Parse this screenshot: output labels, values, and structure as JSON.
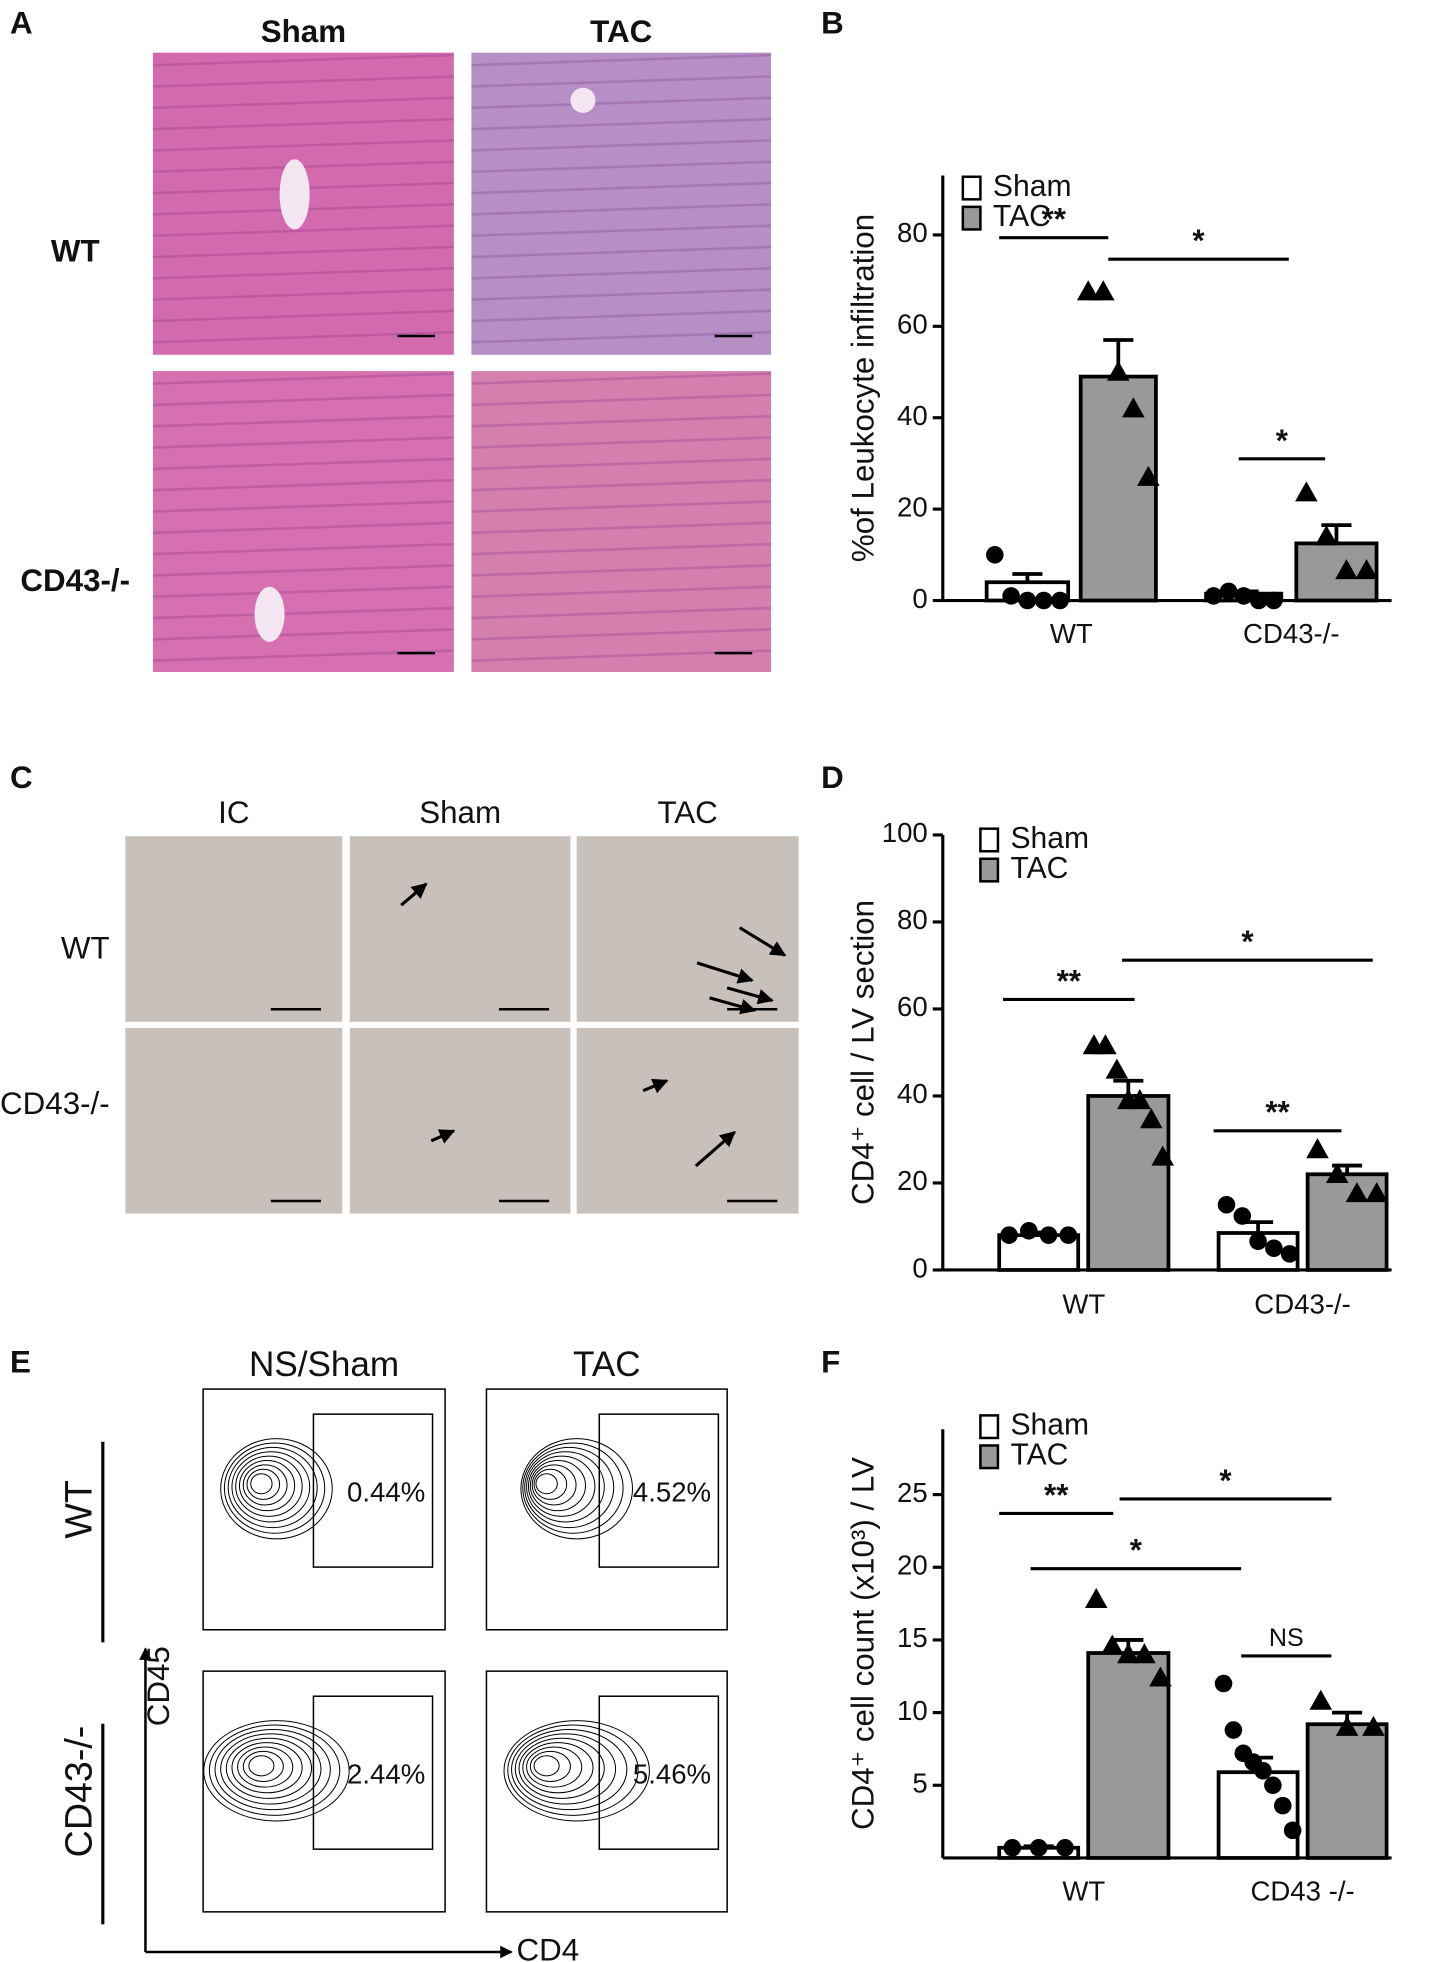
{
  "panels": {
    "A": {
      "letter": "A",
      "columns": [
        "Sham",
        "TAC"
      ],
      "rows": [
        "WT",
        "CD43-/-"
      ]
    },
    "C": {
      "letter": "C",
      "columns": [
        "IC",
        "Sham",
        "TAC"
      ],
      "rows": [
        "WT",
        "CD43-/-"
      ]
    },
    "E": {
      "letter": "E",
      "columns": [
        "NS/Sham",
        "TAC"
      ],
      "rows": [
        "WT",
        "CD43-/-"
      ],
      "gates": [
        [
          "0.44%",
          "4.52%"
        ],
        [
          "2.44%",
          "5.46%"
        ]
      ],
      "y_axis": "CD45",
      "x_axis": "CD4"
    }
  },
  "chart_data": [
    {
      "type": "bar",
      "panel": "B",
      "ylabel": "%of Leukocyte infiltration",
      "categories": [
        "WT",
        "CD43-/-"
      ],
      "ylim": [
        0,
        93
      ],
      "yticks": [
        0,
        20,
        40,
        60,
        80
      ],
      "legend": "upper left",
      "series": [
        {
          "name": "Sham",
          "color": "#ffffff",
          "marker": "circle",
          "values": [
            4,
            1.5
          ],
          "errors": [
            1.8,
            0.5
          ],
          "points": [
            [
              10,
              1,
              0,
              0,
              0
            ],
            [
              1,
              2,
              1,
              0,
              0
            ]
          ]
        },
        {
          "name": "TAC",
          "color": "#999999",
          "marker": "triangle",
          "values": [
            49,
            12.5
          ],
          "errors": [
            8,
            4
          ],
          "points": [
            [
              67.6,
              67.6,
              50,
              42,
              27
            ],
            [
              23.6,
              14,
              6.6,
              6.6
            ]
          ]
        }
      ],
      "annotations": [
        {
          "text": "**",
          "y": 79.4
        },
        {
          "text": "*",
          "y": 74.7
        },
        {
          "text": "*",
          "y": 31
        }
      ]
    },
    {
      "type": "bar",
      "panel": "D",
      "ylabel": "CD4⁺ cell  / LV section",
      "categories": [
        "WT",
        "CD43-/-"
      ],
      "ylim": [
        0,
        100
      ],
      "yticks": [
        0,
        20,
        40,
        60,
        80,
        100
      ],
      "legend": "upper left",
      "series": [
        {
          "name": "Sham",
          "color": "#ffffff",
          "marker": "circle",
          "values": [
            8,
            8.5
          ],
          "errors": [
            0.6,
            2.5
          ],
          "points": [
            [
              8,
              9,
              8,
              8
            ],
            [
              15,
              12.4,
              6.6,
              5,
              3.7
            ]
          ]
        },
        {
          "name": "TAC",
          "color": "#999999",
          "marker": "triangle",
          "values": [
            40,
            22
          ],
          "errors": [
            3.5,
            2
          ],
          "points": [
            [
              51.6,
              51.6,
              46,
              39,
              39,
              34.6,
              26
            ],
            [
              27.7,
              22,
              17.6,
              17.6
            ]
          ]
        }
      ],
      "annotations": [
        {
          "text": "**",
          "y": 62.2
        },
        {
          "text": "*",
          "y": 71.2
        },
        {
          "text": "**",
          "y": 32
        }
      ]
    },
    {
      "type": "bar",
      "panel": "F",
      "ylabel": "CD4⁺ cell count (x10³) / LV",
      "categories": [
        "WT",
        "CD43 -/-"
      ],
      "ylim": [
        0,
        29.5
      ],
      "yticks": [
        5,
        10,
        15,
        20,
        25
      ],
      "legend": "upper left",
      "series": [
        {
          "name": "Sham",
          "color": "#ffffff",
          "marker": "circle",
          "values": [
            0.7,
            5.9
          ],
          "errors": [
            0.1,
            1
          ],
          "points": [
            [
              0.7,
              0.7,
              0.7
            ],
            [
              12,
              8.8,
              7.2,
              6.6,
              6,
              5,
              3.6,
              1.9
            ]
          ]
        },
        {
          "name": "TAC",
          "color": "#999999",
          "marker": "triangle",
          "values": [
            14.1,
            9.2
          ],
          "errors": [
            0.9,
            0.8
          ],
          "points": [
            [
              17.8,
              14.6,
              14,
              14,
              12.4
            ],
            [
              10.8,
              9,
              9
            ]
          ]
        }
      ],
      "annotations": [
        {
          "text": "**",
          "y": 23.7
        },
        {
          "text": "*",
          "y": 24.7
        },
        {
          "text": "*",
          "y": 19.9
        },
        {
          "text": "NS",
          "y": 13.9
        }
      ]
    }
  ]
}
